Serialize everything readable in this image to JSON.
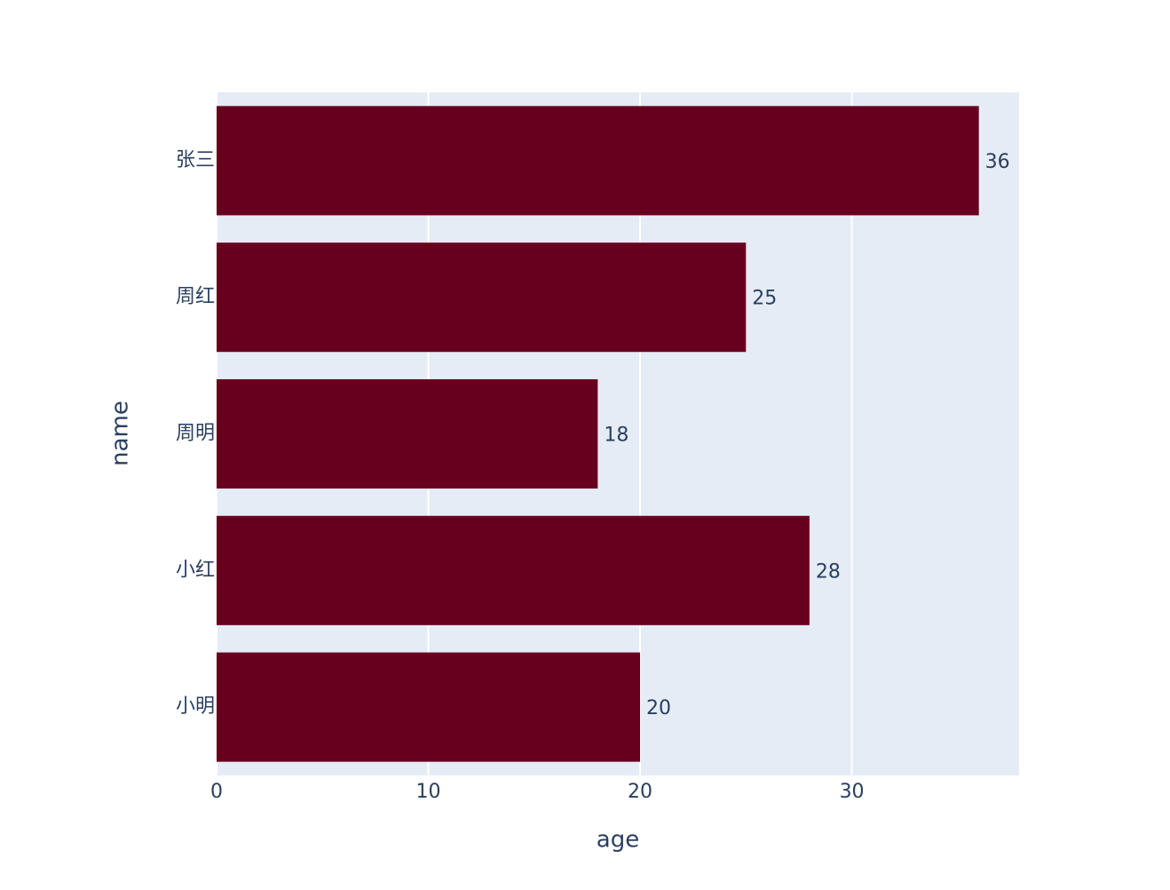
{
  "chart_data": {
    "type": "hbar",
    "categories": [
      "小明",
      "小红",
      "周明",
      "周红",
      "张三"
    ],
    "values": [
      20,
      28,
      18,
      25,
      36
    ],
    "color": "#67001f",
    "x_label": "age",
    "y_label": "name",
    "xlim": [
      0,
      37.9
    ],
    "xticks": [
      0,
      10,
      20,
      30
    ],
    "grid": true
  }
}
